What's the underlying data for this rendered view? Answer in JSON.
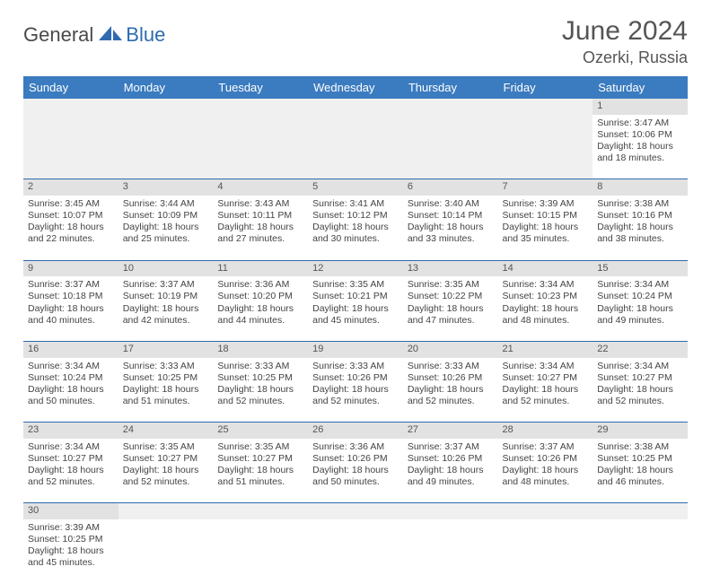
{
  "logo": {
    "part1": "General",
    "part2": "Blue"
  },
  "title": "June 2024",
  "location": "Ozerki, Russia",
  "colors": {
    "header_bg": "#3b7bbf",
    "header_text": "#ffffff",
    "daynum_bg": "#e2e2e2",
    "border": "#2e6bb0",
    "text": "#444444",
    "title_text": "#555555"
  },
  "day_headers": [
    "Sunday",
    "Monday",
    "Tuesday",
    "Wednesday",
    "Thursday",
    "Friday",
    "Saturday"
  ],
  "weeks": [
    {
      "nums": [
        "",
        "",
        "",
        "",
        "",
        "",
        "1"
      ],
      "cells": [
        null,
        null,
        null,
        null,
        null,
        null,
        {
          "sunrise": "Sunrise: 3:47 AM",
          "sunset": "Sunset: 10:06 PM",
          "day1": "Daylight: 18 hours",
          "day2": "and 18 minutes."
        }
      ]
    },
    {
      "nums": [
        "2",
        "3",
        "4",
        "5",
        "6",
        "7",
        "8"
      ],
      "cells": [
        {
          "sunrise": "Sunrise: 3:45 AM",
          "sunset": "Sunset: 10:07 PM",
          "day1": "Daylight: 18 hours",
          "day2": "and 22 minutes."
        },
        {
          "sunrise": "Sunrise: 3:44 AM",
          "sunset": "Sunset: 10:09 PM",
          "day1": "Daylight: 18 hours",
          "day2": "and 25 minutes."
        },
        {
          "sunrise": "Sunrise: 3:43 AM",
          "sunset": "Sunset: 10:11 PM",
          "day1": "Daylight: 18 hours",
          "day2": "and 27 minutes."
        },
        {
          "sunrise": "Sunrise: 3:41 AM",
          "sunset": "Sunset: 10:12 PM",
          "day1": "Daylight: 18 hours",
          "day2": "and 30 minutes."
        },
        {
          "sunrise": "Sunrise: 3:40 AM",
          "sunset": "Sunset: 10:14 PM",
          "day1": "Daylight: 18 hours",
          "day2": "and 33 minutes."
        },
        {
          "sunrise": "Sunrise: 3:39 AM",
          "sunset": "Sunset: 10:15 PM",
          "day1": "Daylight: 18 hours",
          "day2": "and 35 minutes."
        },
        {
          "sunrise": "Sunrise: 3:38 AM",
          "sunset": "Sunset: 10:16 PM",
          "day1": "Daylight: 18 hours",
          "day2": "and 38 minutes."
        }
      ]
    },
    {
      "nums": [
        "9",
        "10",
        "11",
        "12",
        "13",
        "14",
        "15"
      ],
      "cells": [
        {
          "sunrise": "Sunrise: 3:37 AM",
          "sunset": "Sunset: 10:18 PM",
          "day1": "Daylight: 18 hours",
          "day2": "and 40 minutes."
        },
        {
          "sunrise": "Sunrise: 3:37 AM",
          "sunset": "Sunset: 10:19 PM",
          "day1": "Daylight: 18 hours",
          "day2": "and 42 minutes."
        },
        {
          "sunrise": "Sunrise: 3:36 AM",
          "sunset": "Sunset: 10:20 PM",
          "day1": "Daylight: 18 hours",
          "day2": "and 44 minutes."
        },
        {
          "sunrise": "Sunrise: 3:35 AM",
          "sunset": "Sunset: 10:21 PM",
          "day1": "Daylight: 18 hours",
          "day2": "and 45 minutes."
        },
        {
          "sunrise": "Sunrise: 3:35 AM",
          "sunset": "Sunset: 10:22 PM",
          "day1": "Daylight: 18 hours",
          "day2": "and 47 minutes."
        },
        {
          "sunrise": "Sunrise: 3:34 AM",
          "sunset": "Sunset: 10:23 PM",
          "day1": "Daylight: 18 hours",
          "day2": "and 48 minutes."
        },
        {
          "sunrise": "Sunrise: 3:34 AM",
          "sunset": "Sunset: 10:24 PM",
          "day1": "Daylight: 18 hours",
          "day2": "and 49 minutes."
        }
      ]
    },
    {
      "nums": [
        "16",
        "17",
        "18",
        "19",
        "20",
        "21",
        "22"
      ],
      "cells": [
        {
          "sunrise": "Sunrise: 3:34 AM",
          "sunset": "Sunset: 10:24 PM",
          "day1": "Daylight: 18 hours",
          "day2": "and 50 minutes."
        },
        {
          "sunrise": "Sunrise: 3:33 AM",
          "sunset": "Sunset: 10:25 PM",
          "day1": "Daylight: 18 hours",
          "day2": "and 51 minutes."
        },
        {
          "sunrise": "Sunrise: 3:33 AM",
          "sunset": "Sunset: 10:25 PM",
          "day1": "Daylight: 18 hours",
          "day2": "and 52 minutes."
        },
        {
          "sunrise": "Sunrise: 3:33 AM",
          "sunset": "Sunset: 10:26 PM",
          "day1": "Daylight: 18 hours",
          "day2": "and 52 minutes."
        },
        {
          "sunrise": "Sunrise: 3:33 AM",
          "sunset": "Sunset: 10:26 PM",
          "day1": "Daylight: 18 hours",
          "day2": "and 52 minutes."
        },
        {
          "sunrise": "Sunrise: 3:34 AM",
          "sunset": "Sunset: 10:27 PM",
          "day1": "Daylight: 18 hours",
          "day2": "and 52 minutes."
        },
        {
          "sunrise": "Sunrise: 3:34 AM",
          "sunset": "Sunset: 10:27 PM",
          "day1": "Daylight: 18 hours",
          "day2": "and 52 minutes."
        }
      ]
    },
    {
      "nums": [
        "23",
        "24",
        "25",
        "26",
        "27",
        "28",
        "29"
      ],
      "cells": [
        {
          "sunrise": "Sunrise: 3:34 AM",
          "sunset": "Sunset: 10:27 PM",
          "day1": "Daylight: 18 hours",
          "day2": "and 52 minutes."
        },
        {
          "sunrise": "Sunrise: 3:35 AM",
          "sunset": "Sunset: 10:27 PM",
          "day1": "Daylight: 18 hours",
          "day2": "and 52 minutes."
        },
        {
          "sunrise": "Sunrise: 3:35 AM",
          "sunset": "Sunset: 10:27 PM",
          "day1": "Daylight: 18 hours",
          "day2": "and 51 minutes."
        },
        {
          "sunrise": "Sunrise: 3:36 AM",
          "sunset": "Sunset: 10:26 PM",
          "day1": "Daylight: 18 hours",
          "day2": "and 50 minutes."
        },
        {
          "sunrise": "Sunrise: 3:37 AM",
          "sunset": "Sunset: 10:26 PM",
          "day1": "Daylight: 18 hours",
          "day2": "and 49 minutes."
        },
        {
          "sunrise": "Sunrise: 3:37 AM",
          "sunset": "Sunset: 10:26 PM",
          "day1": "Daylight: 18 hours",
          "day2": "and 48 minutes."
        },
        {
          "sunrise": "Sunrise: 3:38 AM",
          "sunset": "Sunset: 10:25 PM",
          "day1": "Daylight: 18 hours",
          "day2": "and 46 minutes."
        }
      ]
    },
    {
      "nums": [
        "30",
        "",
        "",
        "",
        "",
        "",
        ""
      ],
      "cells": [
        {
          "sunrise": "Sunrise: 3:39 AM",
          "sunset": "Sunset: 10:25 PM",
          "day1": "Daylight: 18 hours",
          "day2": "and 45 minutes."
        },
        null,
        null,
        null,
        null,
        null,
        null
      ]
    }
  ]
}
